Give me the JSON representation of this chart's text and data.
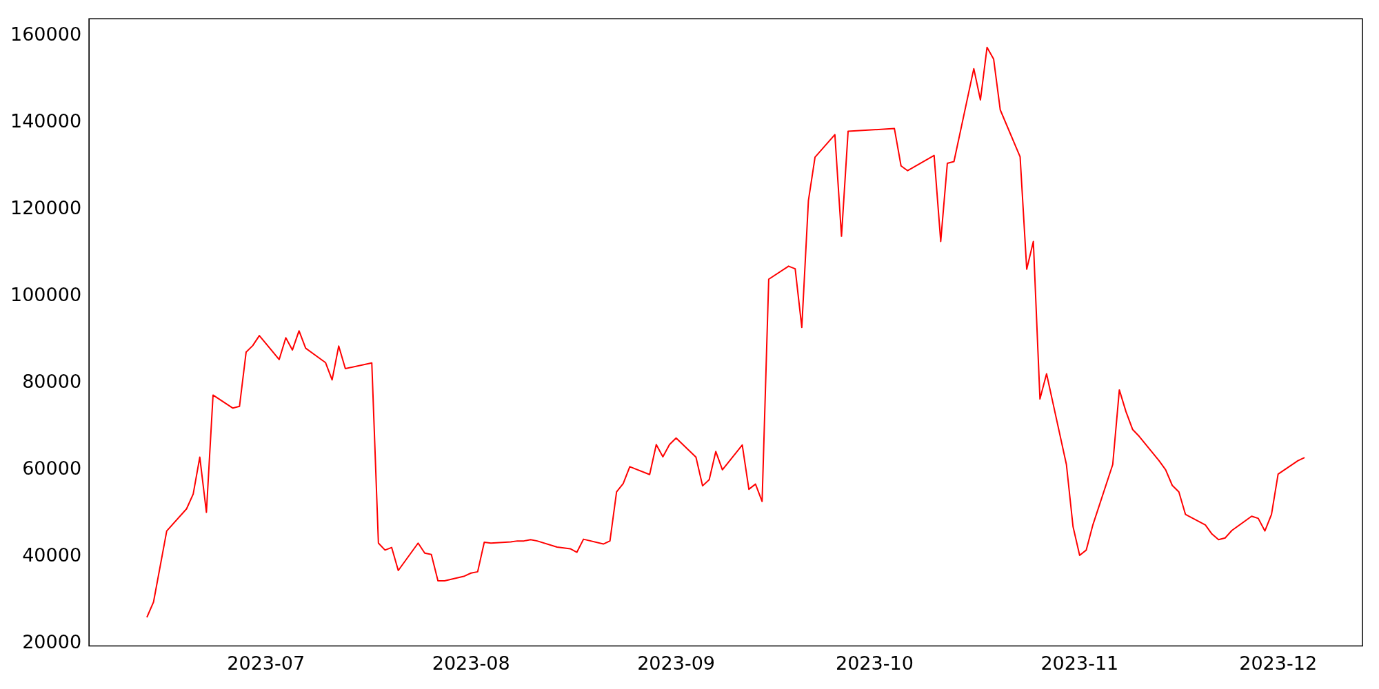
{
  "chart_data": {
    "type": "line",
    "color": "#ff0000",
    "grid": false,
    "legend": false,
    "x": [
      "2023-06-13",
      "2023-06-14",
      "2023-06-16",
      "2023-06-19",
      "2023-06-20",
      "2023-06-21",
      "2023-06-22",
      "2023-06-23",
      "2023-06-26",
      "2023-06-27",
      "2023-06-28",
      "2023-06-29",
      "2023-06-30",
      "2023-07-03",
      "2023-07-04",
      "2023-07-05",
      "2023-07-06",
      "2023-07-07",
      "2023-07-10",
      "2023-07-11",
      "2023-07-12",
      "2023-07-13",
      "2023-07-17",
      "2023-07-18",
      "2023-07-19",
      "2023-07-20",
      "2023-07-21",
      "2023-07-24",
      "2023-07-25",
      "2023-07-26",
      "2023-07-27",
      "2023-07-28",
      "2023-07-31",
      "2023-08-01",
      "2023-08-02",
      "2023-08-03",
      "2023-08-04",
      "2023-08-07",
      "2023-08-08",
      "2023-08-09",
      "2023-08-10",
      "2023-08-11",
      "2023-08-14",
      "2023-08-16",
      "2023-08-17",
      "2023-08-18",
      "2023-08-21",
      "2023-08-22",
      "2023-08-23",
      "2023-08-24",
      "2023-08-25",
      "2023-08-28",
      "2023-08-29",
      "2023-08-30",
      "2023-08-31",
      "2023-09-01",
      "2023-09-04",
      "2023-09-05",
      "2023-09-06",
      "2023-09-07",
      "2023-09-08",
      "2023-09-11",
      "2023-09-12",
      "2023-09-13",
      "2023-09-14",
      "2023-09-15",
      "2023-09-18",
      "2023-09-19",
      "2023-09-20",
      "2023-09-21",
      "2023-09-22",
      "2023-09-25",
      "2023-09-26",
      "2023-09-27",
      "2023-10-04",
      "2023-10-05",
      "2023-10-06",
      "2023-10-10",
      "2023-10-11",
      "2023-10-12",
      "2023-10-13",
      "2023-10-16",
      "2023-10-17",
      "2023-10-18",
      "2023-10-19",
      "2023-10-20",
      "2023-10-23",
      "2023-10-24",
      "2023-10-25",
      "2023-10-26",
      "2023-10-27",
      "2023-10-30",
      "2023-10-31",
      "2023-11-01",
      "2023-11-02",
      "2023-11-03",
      "2023-11-06",
      "2023-11-07",
      "2023-11-08",
      "2023-11-09",
      "2023-11-10",
      "2023-11-13",
      "2023-11-14",
      "2023-11-15",
      "2023-11-16",
      "2023-11-17",
      "2023-11-20",
      "2023-11-21",
      "2023-11-22",
      "2023-11-23",
      "2023-11-24",
      "2023-11-27",
      "2023-11-28",
      "2023-11-29",
      "2023-11-30",
      "2023-12-01",
      "2023-12-04",
      "2023-12-05"
    ],
    "values": [
      26000,
      29500,
      45900,
      51000,
      54400,
      62900,
      50200,
      77200,
      74200,
      74600,
      87100,
      88600,
      90900,
      85400,
      90400,
      87600,
      92000,
      88000,
      84700,
      80700,
      88500,
      83300,
      84600,
      43100,
      41500,
      42100,
      36800,
      43100,
      40800,
      40500,
      34400,
      34400,
      35500,
      36200,
      36500,
      43300,
      43100,
      43400,
      43600,
      43600,
      43900,
      43600,
      42200,
      41800,
      41000,
      44000,
      42900,
      43600,
      54900,
      56800,
      60700,
      58900,
      65800,
      63000,
      65800,
      67300,
      62900,
      56300,
      57700,
      64200,
      60000,
      65700,
      55500,
      56700,
      52700,
      103900,
      106900,
      106300,
      92800,
      122000,
      132000,
      137200,
      113800,
      138000,
      138600,
      130000,
      128900,
      132400,
      112600,
      130600,
      131000,
      152400,
      145200,
      157300,
      154600,
      142900,
      132100,
      106200,
      112600,
      76300,
      82100,
      61200,
      46900,
      40300,
      41500,
      47300,
      61200,
      78400,
      73400,
      69300,
      67700,
      62100,
      60000,
      56400,
      54900,
      49700,
      47300,
      45200,
      43900,
      44300,
      46000,
      49300,
      48800,
      45900,
      49700,
      59000,
      62100,
      62800
    ],
    "xlim": [
      "2023-06-04T06:00",
      "2023-12-13T18:00"
    ],
    "xticks": [
      "2023-07",
      "2023-08",
      "2023-09",
      "2023-10",
      "2023-11",
      "2023-12"
    ],
    "ylim": [
      19400,
      163900
    ],
    "yticks": [
      20000,
      40000,
      60000,
      80000,
      100000,
      120000,
      140000,
      160000
    ]
  }
}
